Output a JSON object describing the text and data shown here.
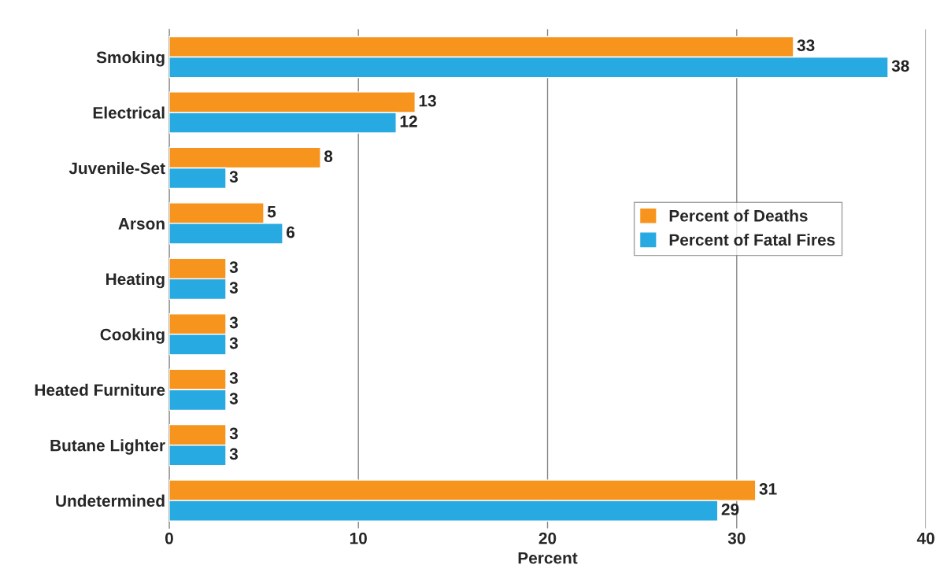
{
  "chart_data": {
    "type": "bar",
    "orientation": "horizontal",
    "categories": [
      "Smoking",
      "Electrical",
      "Juvenile-Set",
      "Arson",
      "Heating",
      "Cooking",
      "Heated Furniture",
      "Butane Lighter",
      "Undetermined"
    ],
    "series": [
      {
        "name": "Percent of Deaths",
        "color": "#f7941d",
        "values": [
          33,
          13,
          8,
          5,
          3,
          3,
          3,
          3,
          31
        ]
      },
      {
        "name": "Percent of Fatal Fires",
        "color": "#27a9e1",
        "values": [
          38,
          12,
          3,
          6,
          3,
          3,
          3,
          3,
          29
        ]
      }
    ],
    "xlabel": "Percent",
    "xlim": [
      0,
      40
    ],
    "xticks": [
      0,
      10,
      20,
      30,
      40
    ],
    "grid": "x",
    "legend": "right",
    "data_labels": true
  }
}
